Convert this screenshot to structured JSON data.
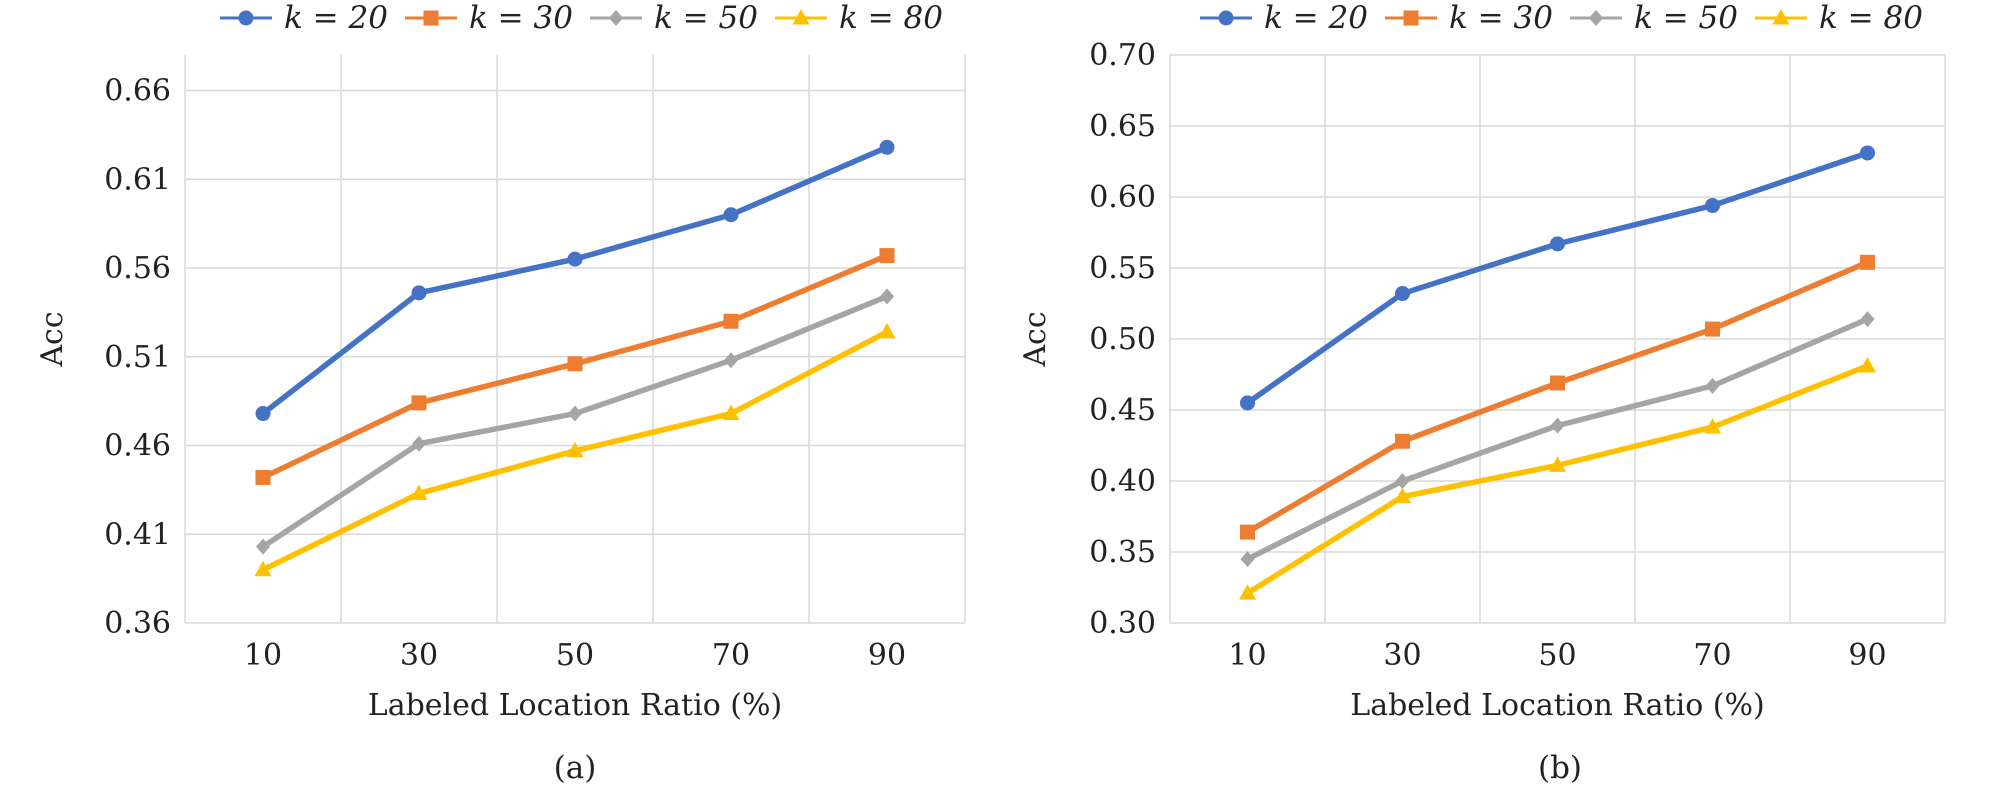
{
  "chart_data": [
    {
      "type": "line",
      "caption": "(a)",
      "xlabel": "Labeled Location Ratio (%)",
      "ylabel": "Acc",
      "categories": [
        "10",
        "30",
        "50",
        "70",
        "90"
      ],
      "ylim": [
        0.36,
        0.68
      ],
      "yticks": [
        "0.36",
        "0.41",
        "0.46",
        "0.51",
        "0.56",
        "0.61",
        "0.66"
      ],
      "grid": true,
      "legend_position": "top",
      "series": [
        {
          "name": "k = 20",
          "color": "#4472C4",
          "marker": "circle",
          "values": [
            0.478,
            0.546,
            0.565,
            0.59,
            0.628
          ]
        },
        {
          "name": "k = 30",
          "color": "#ED7D31",
          "marker": "square",
          "values": [
            0.442,
            0.484,
            0.506,
            0.53,
            0.567
          ]
        },
        {
          "name": "k = 50",
          "color": "#A5A5A5",
          "marker": "diamond",
          "values": [
            0.403,
            0.461,
            0.478,
            0.508,
            0.544
          ]
        },
        {
          "name": "k = 80",
          "color": "#FFC000",
          "marker": "triangle",
          "values": [
            0.39,
            0.433,
            0.457,
            0.478,
            0.524
          ]
        }
      ]
    },
    {
      "type": "line",
      "caption": "(b)",
      "xlabel": "Labeled Location Ratio (%)",
      "ylabel": "Acc",
      "categories": [
        "10",
        "30",
        "50",
        "70",
        "90"
      ],
      "ylim": [
        0.3,
        0.7
      ],
      "yticks": [
        "0.30",
        "0.35",
        "0.40",
        "0.45",
        "0.50",
        "0.55",
        "0.60",
        "0.65",
        "0.70"
      ],
      "grid": true,
      "legend_position": "top",
      "series": [
        {
          "name": "k = 20",
          "color": "#4472C4",
          "marker": "circle",
          "values": [
            0.455,
            0.532,
            0.567,
            0.594,
            0.631
          ]
        },
        {
          "name": "k = 30",
          "color": "#ED7D31",
          "marker": "square",
          "values": [
            0.364,
            0.428,
            0.469,
            0.507,
            0.554
          ]
        },
        {
          "name": "k = 50",
          "color": "#A5A5A5",
          "marker": "diamond",
          "values": [
            0.345,
            0.4,
            0.439,
            0.467,
            0.514
          ]
        },
        {
          "name": "k = 80",
          "color": "#FFC000",
          "marker": "triangle",
          "values": [
            0.321,
            0.389,
            0.411,
            0.438,
            0.481
          ]
        }
      ]
    }
  ]
}
